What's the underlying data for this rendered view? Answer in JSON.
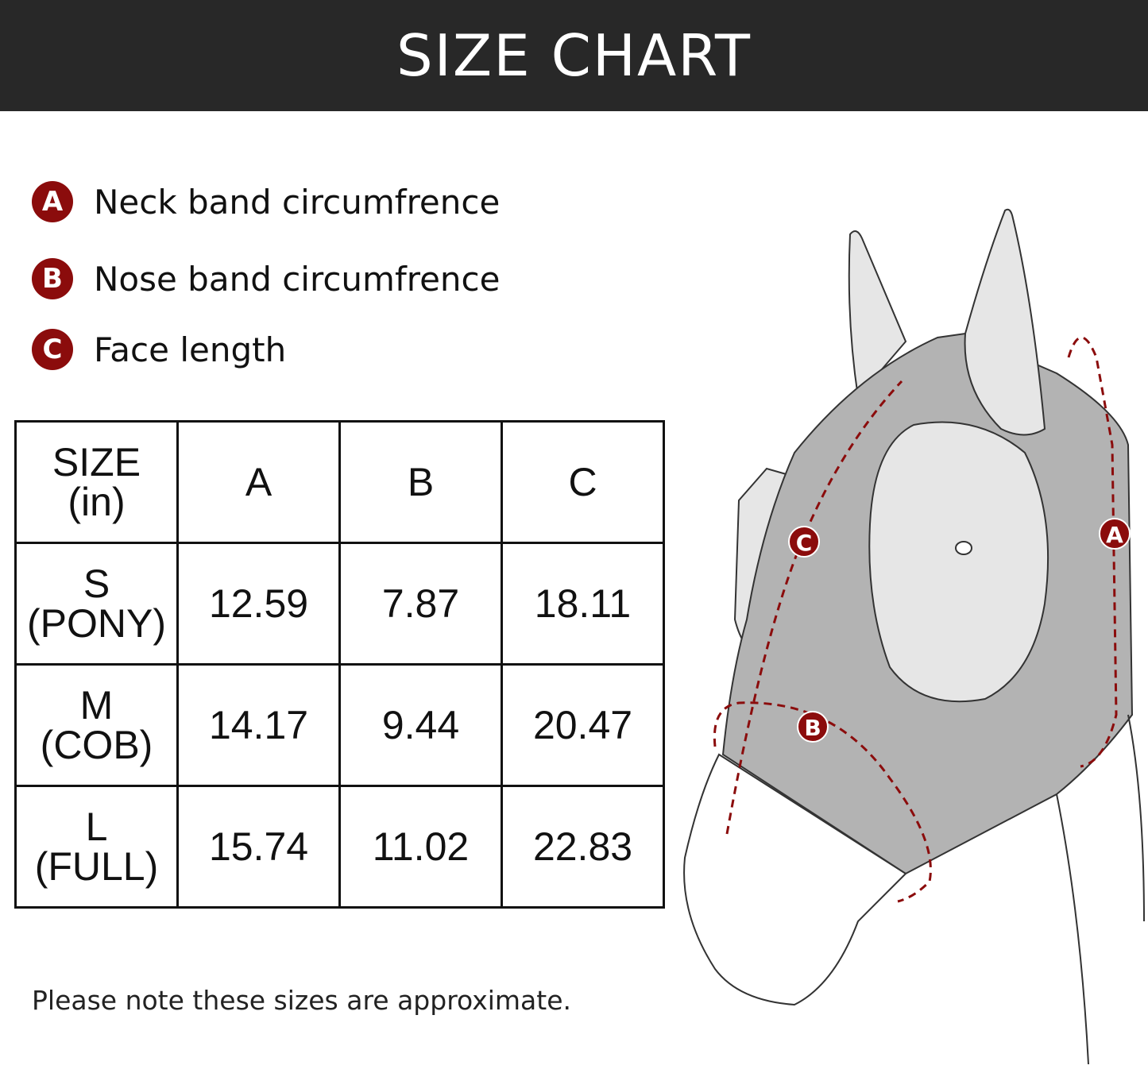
{
  "header": {
    "title": "SIZE CHART"
  },
  "legend": [
    {
      "letter": "A",
      "label": "Neck band circumfrence"
    },
    {
      "letter": "B",
      "label": "Nose band circumfrence"
    },
    {
      "letter": "C",
      "label": "Face length"
    }
  ],
  "table": {
    "header": {
      "size": "SIZE",
      "unit": "(in)",
      "columns": [
        "A",
        "B",
        "C"
      ]
    },
    "rows": [
      {
        "size": "S",
        "type": "(PONY)",
        "values": [
          "12.59",
          "7.87",
          "18.11"
        ]
      },
      {
        "size": "M",
        "type": "(COB)",
        "values": [
          "14.17",
          "9.44",
          "20.47"
        ]
      },
      {
        "size": "L",
        "type": "(FULL)",
        "values": [
          "15.74",
          "11.02",
          "22.83"
        ]
      }
    ]
  },
  "illustration": {
    "markers": [
      "A",
      "B",
      "C"
    ]
  },
  "note": "Please note these sizes are approximate.",
  "colors": {
    "header_bg": "#282828",
    "accent": "#8b0c0c",
    "mask": "#b3b3b3"
  }
}
